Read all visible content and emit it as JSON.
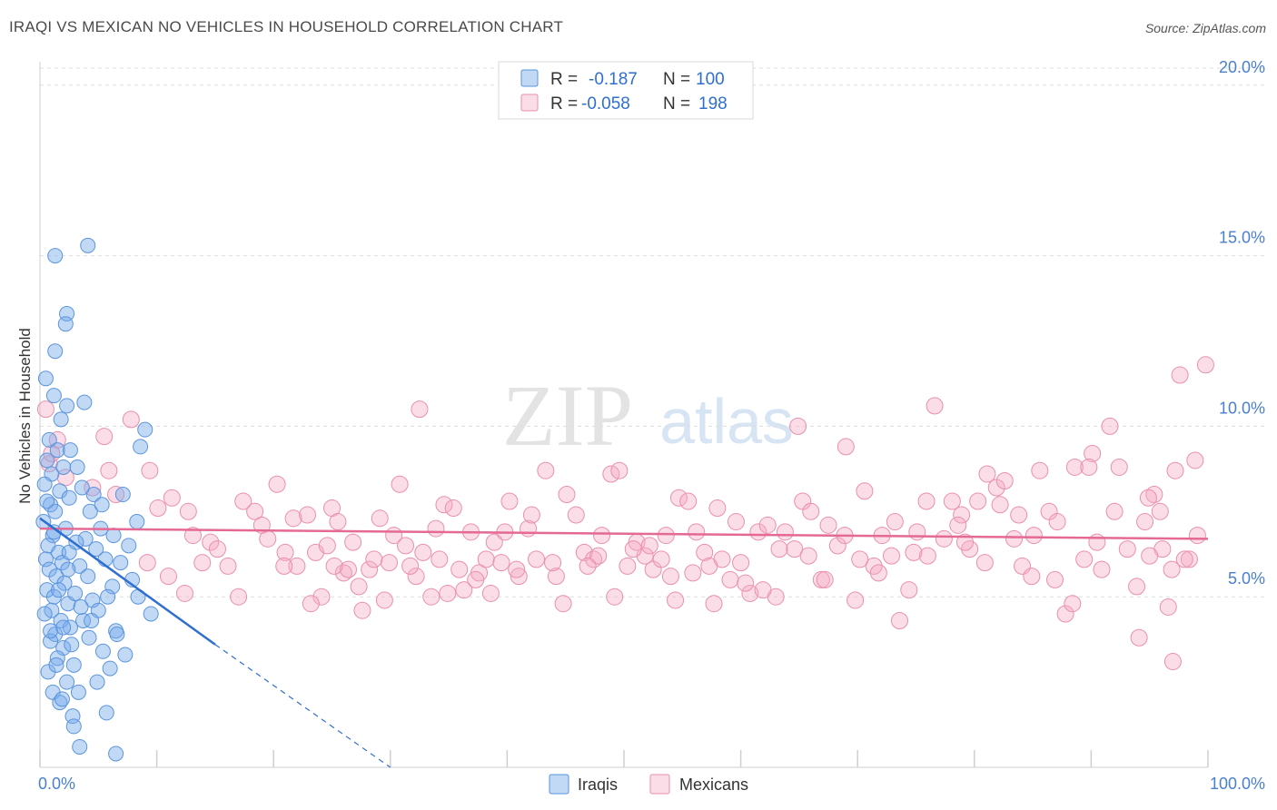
{
  "title": "IRAQI VS MEXICAN NO VEHICLES IN HOUSEHOLD CORRELATION CHART",
  "source": "Source: ZipAtlas.com",
  "colors": {
    "iraqi_fill": "rgba(120,170,235,0.45)",
    "iraqi_stroke": "#5b95dc",
    "iraqi_line": "#2f6fd0",
    "mexican_fill": "rgba(245,170,195,0.40)",
    "mexican_stroke": "#ea8fae",
    "mexican_line": "#e46a95",
    "tick_label": "#4a7fd0",
    "grid": "#dddddd"
  },
  "legend_top": {
    "rows": [
      {
        "r_label": "R =",
        "r_value": "-0.187",
        "n_label": "N =",
        "n_value": "100"
      },
      {
        "r_label": "R =",
        "r_value": "-0.058",
        "n_label": "N =",
        "n_value": "198"
      }
    ]
  },
  "legend_bottom": [
    "Iraqis",
    "Mexicans"
  ],
  "watermark": {
    "part1": "ZIP",
    "part2": "atlas"
  },
  "chart_data": {
    "type": "scatter",
    "title": "IRAQI VS MEXICAN NO VEHICLES IN HOUSEHOLD CORRELATION CHART",
    "xlabel": "",
    "ylabel": "No Vehicles in Household",
    "xlim": [
      0,
      100
    ],
    "ylim": [
      0,
      20.5
    ],
    "x_tick_labels": [
      {
        "value": 0,
        "label": "0.0%"
      },
      {
        "value": 100,
        "label": "100.0%"
      }
    ],
    "y_tick_labels": [
      {
        "value": 5,
        "label": "5.0%"
      },
      {
        "value": 10,
        "label": "10.0%"
      },
      {
        "value": 15,
        "label": "15.0%"
      },
      {
        "value": 20,
        "label": "20.0%"
      }
    ],
    "series": [
      {
        "name": "Iraqis",
        "r": -0.187,
        "n": 100,
        "trend": {
          "x0": 0,
          "y0": 7.3,
          "x1": 15,
          "y1": 3.6,
          "dash_to_x": 30
        },
        "points": [
          [
            0.5,
            11.4
          ],
          [
            1.2,
            10.9
          ],
          [
            2.3,
            10.6
          ],
          [
            1.8,
            10.2
          ],
          [
            0.8,
            9.6
          ],
          [
            1.5,
            9.3
          ],
          [
            0.6,
            9.0
          ],
          [
            2.0,
            8.8
          ],
          [
            1.0,
            8.6
          ],
          [
            0.4,
            8.3
          ],
          [
            1.7,
            8.1
          ],
          [
            2.5,
            7.9
          ],
          [
            0.9,
            7.7
          ],
          [
            1.3,
            7.5
          ],
          [
            0.3,
            7.2
          ],
          [
            2.2,
            7.0
          ],
          [
            1.1,
            6.8
          ],
          [
            0.7,
            6.5
          ],
          [
            1.6,
            6.3
          ],
          [
            0.5,
            6.1
          ],
          [
            1.9,
            6.0
          ],
          [
            0.8,
            5.8
          ],
          [
            1.4,
            5.6
          ],
          [
            2.1,
            5.4
          ],
          [
            0.6,
            5.2
          ],
          [
            1.2,
            5.0
          ],
          [
            2.4,
            4.8
          ],
          [
            1.0,
            4.6
          ],
          [
            0.4,
            4.5
          ],
          [
            1.8,
            4.3
          ],
          [
            2.6,
            4.1
          ],
          [
            1.3,
            3.9
          ],
          [
            0.9,
            3.7
          ],
          [
            2.0,
            3.5
          ],
          [
            1.5,
            3.2
          ],
          [
            0.7,
            2.8
          ],
          [
            2.3,
            2.5
          ],
          [
            1.1,
            2.2
          ],
          [
            1.7,
            1.9
          ],
          [
            2.8,
            1.5
          ],
          [
            1.3,
            15.0
          ],
          [
            4.1,
            15.3
          ],
          [
            2.3,
            13.3
          ],
          [
            2.2,
            13.0
          ],
          [
            1.3,
            12.2
          ],
          [
            3.8,
            10.7
          ],
          [
            4.6,
            8.0
          ],
          [
            2.6,
            9.3
          ],
          [
            3.2,
            8.8
          ],
          [
            3.6,
            8.2
          ],
          [
            4.3,
            7.5
          ],
          [
            5.2,
            7.0
          ],
          [
            3.9,
            6.7
          ],
          [
            4.8,
            6.4
          ],
          [
            5.6,
            6.1
          ],
          [
            3.4,
            5.9
          ],
          [
            4.1,
            5.6
          ],
          [
            6.2,
            5.3
          ],
          [
            3.0,
            5.1
          ],
          [
            4.5,
            4.9
          ],
          [
            5.0,
            4.6
          ],
          [
            3.7,
            4.3
          ],
          [
            6.5,
            4.0
          ],
          [
            4.2,
            3.8
          ],
          [
            5.4,
            3.4
          ],
          [
            2.9,
            3.0
          ],
          [
            6.0,
            2.9
          ],
          [
            4.9,
            2.5
          ],
          [
            3.3,
            2.2
          ],
          [
            5.7,
            1.6
          ],
          [
            8.6,
            9.4
          ],
          [
            9.0,
            9.9
          ],
          [
            7.1,
            8.0
          ],
          [
            8.3,
            7.2
          ],
          [
            7.6,
            6.5
          ],
          [
            6.9,
            6.0
          ],
          [
            7.9,
            5.5
          ],
          [
            8.4,
            5.0
          ],
          [
            9.5,
            4.5
          ],
          [
            6.6,
            3.9
          ],
          [
            2.5,
            6.3
          ],
          [
            3.1,
            6.6
          ],
          [
            1.6,
            5.2
          ],
          [
            0.9,
            4.0
          ],
          [
            2.7,
            3.6
          ],
          [
            1.9,
            2.0
          ],
          [
            3.5,
            4.7
          ],
          [
            2.4,
            5.8
          ],
          [
            1.2,
            6.9
          ],
          [
            0.6,
            7.8
          ],
          [
            3.4,
            0.6
          ],
          [
            6.5,
            0.4
          ],
          [
            2.9,
            1.2
          ],
          [
            5.8,
            5.0
          ],
          [
            4.4,
            4.3
          ],
          [
            7.3,
            3.3
          ],
          [
            6.3,
            6.8
          ],
          [
            5.3,
            7.7
          ],
          [
            2.0,
            4.1
          ],
          [
            1.4,
            3.0
          ]
        ]
      },
      {
        "name": "Mexicans",
        "r": -0.058,
        "n": 198,
        "trend": {
          "x0": 0,
          "y0": 7.0,
          "x1": 100,
          "y1": 6.7
        },
        "points": [
          [
            0.5,
            10.5
          ],
          [
            1.5,
            9.6
          ],
          [
            0.8,
            8.9
          ],
          [
            2.2,
            8.5
          ],
          [
            1.0,
            9.2
          ],
          [
            5.5,
            9.7
          ],
          [
            7.8,
            10.2
          ],
          [
            5.9,
            8.7
          ],
          [
            6.5,
            8.0
          ],
          [
            4.5,
            8.2
          ],
          [
            9.4,
            8.7
          ],
          [
            10.1,
            7.6
          ],
          [
            11.3,
            7.9
          ],
          [
            12.7,
            7.5
          ],
          [
            13.1,
            6.8
          ],
          [
            14.6,
            6.6
          ],
          [
            9.2,
            6.0
          ],
          [
            11.0,
            5.6
          ],
          [
            12.4,
            5.1
          ],
          [
            13.9,
            6.0
          ],
          [
            15.2,
            6.4
          ],
          [
            16.1,
            5.9
          ],
          [
            17.0,
            5.0
          ],
          [
            17.4,
            7.8
          ],
          [
            18.4,
            7.5
          ],
          [
            19.5,
            6.7
          ],
          [
            20.3,
            8.3
          ],
          [
            21.0,
            6.3
          ],
          [
            22.0,
            5.9
          ],
          [
            22.9,
            7.4
          ],
          [
            23.6,
            6.3
          ],
          [
            24.1,
            5.0
          ],
          [
            25.0,
            7.6
          ],
          [
            25.5,
            7.2
          ],
          [
            26.0,
            5.7
          ],
          [
            26.8,
            6.6
          ],
          [
            27.6,
            4.6
          ],
          [
            28.2,
            5.8
          ],
          [
            29.1,
            7.3
          ],
          [
            29.9,
            6.0
          ],
          [
            30.8,
            8.3
          ],
          [
            31.3,
            6.5
          ],
          [
            32.2,
            5.6
          ],
          [
            32.8,
            6.3
          ],
          [
            33.5,
            5.0
          ],
          [
            34.2,
            6.1
          ],
          [
            34.6,
            7.7
          ],
          [
            35.4,
            7.6
          ],
          [
            36.3,
            5.2
          ],
          [
            36.9,
            6.9
          ],
          [
            37.6,
            5.7
          ],
          [
            38.2,
            6.1
          ],
          [
            38.9,
            6.6
          ],
          [
            39.5,
            6.0
          ],
          [
            40.2,
            7.8
          ],
          [
            41.0,
            5.6
          ],
          [
            41.8,
            7.0
          ],
          [
            42.5,
            6.1
          ],
          [
            43.3,
            8.7
          ],
          [
            44.2,
            5.6
          ],
          [
            45.1,
            8.0
          ],
          [
            45.9,
            7.4
          ],
          [
            46.6,
            6.3
          ],
          [
            47.4,
            6.1
          ],
          [
            48.1,
            6.8
          ],
          [
            48.9,
            8.6
          ],
          [
            49.6,
            8.7
          ],
          [
            50.3,
            5.9
          ],
          [
            51.1,
            6.6
          ],
          [
            51.8,
            6.2
          ],
          [
            52.5,
            5.8
          ],
          [
            53.2,
            6.1
          ],
          [
            54.0,
            5.6
          ],
          [
            54.7,
            7.9
          ],
          [
            55.5,
            7.8
          ],
          [
            56.2,
            6.9
          ],
          [
            56.9,
            6.3
          ],
          [
            57.7,
            4.8
          ],
          [
            58.4,
            6.1
          ],
          [
            59.1,
            5.5
          ],
          [
            60.0,
            6.0
          ],
          [
            60.8,
            5.1
          ],
          [
            61.5,
            6.9
          ],
          [
            62.3,
            7.1
          ],
          [
            63.0,
            5.0
          ],
          [
            63.8,
            6.9
          ],
          [
            64.6,
            6.4
          ],
          [
            65.3,
            7.8
          ],
          [
            66.0,
            7.5
          ],
          [
            66.9,
            5.5
          ],
          [
            67.5,
            7.1
          ],
          [
            68.3,
            6.5
          ],
          [
            69.0,
            9.4
          ],
          [
            69.8,
            4.9
          ],
          [
            70.6,
            8.1
          ],
          [
            71.4,
            5.9
          ],
          [
            72.1,
            6.8
          ],
          [
            72.9,
            6.2
          ],
          [
            73.6,
            4.3
          ],
          [
            74.4,
            5.2
          ],
          [
            75.1,
            6.9
          ],
          [
            75.9,
            7.8
          ],
          [
            76.6,
            10.6
          ],
          [
            77.4,
            6.7
          ],
          [
            78.1,
            7.8
          ],
          [
            78.9,
            7.4
          ],
          [
            79.6,
            6.4
          ],
          [
            80.3,
            7.8
          ],
          [
            81.1,
            8.6
          ],
          [
            81.9,
            8.2
          ],
          [
            82.6,
            8.4
          ],
          [
            83.4,
            6.7
          ],
          [
            84.1,
            5.9
          ],
          [
            84.9,
            5.6
          ],
          [
            85.6,
            8.7
          ],
          [
            86.4,
            7.5
          ],
          [
            87.1,
            7.2
          ],
          [
            87.8,
            4.5
          ],
          [
            88.6,
            8.8
          ],
          [
            89.4,
            6.1
          ],
          [
            90.1,
            9.2
          ],
          [
            90.9,
            5.8
          ],
          [
            91.6,
            10.0
          ],
          [
            92.4,
            8.8
          ],
          [
            93.1,
            6.4
          ],
          [
            93.9,
            5.3
          ],
          [
            94.6,
            7.2
          ],
          [
            95.4,
            8.0
          ],
          [
            96.1,
            6.4
          ],
          [
            96.9,
            5.8
          ],
          [
            97.6,
            11.5
          ],
          [
            98.4,
            6.1
          ],
          [
            99.1,
            6.8
          ],
          [
            99.8,
            11.8
          ],
          [
            98.9,
            9.0
          ],
          [
            97.2,
            8.7
          ],
          [
            96.6,
            4.7
          ],
          [
            95.9,
            7.5
          ],
          [
            95.0,
            6.2
          ],
          [
            94.1,
            3.8
          ],
          [
            98.0,
            6.1
          ],
          [
            97.0,
            3.1
          ],
          [
            94.9,
            7.9
          ],
          [
            92.0,
            7.5
          ],
          [
            90.5,
            6.6
          ],
          [
            89.8,
            8.8
          ],
          [
            88.4,
            4.8
          ],
          [
            86.9,
            5.5
          ],
          [
            85.1,
            6.8
          ],
          [
            83.8,
            7.4
          ],
          [
            82.2,
            7.7
          ],
          [
            80.9,
            6.0
          ],
          [
            79.2,
            6.6
          ],
          [
            78.6,
            7.1
          ],
          [
            76.0,
            6.2
          ],
          [
            74.8,
            6.3
          ],
          [
            73.2,
            7.2
          ],
          [
            71.8,
            5.7
          ],
          [
            70.2,
            6.1
          ],
          [
            68.9,
            6.8
          ],
          [
            67.2,
            5.5
          ],
          [
            65.8,
            6.2
          ],
          [
            64.9,
            10.0
          ],
          [
            63.3,
            6.4
          ],
          [
            61.9,
            5.2
          ],
          [
            60.4,
            5.4
          ],
          [
            59.6,
            7.2
          ],
          [
            58.0,
            7.6
          ],
          [
            57.3,
            5.9
          ],
          [
            55.9,
            5.7
          ],
          [
            54.4,
            4.9
          ],
          [
            53.6,
            6.8
          ],
          [
            52.2,
            6.5
          ],
          [
            50.8,
            6.4
          ],
          [
            49.2,
            5.0
          ],
          [
            47.8,
            6.2
          ],
          [
            46.9,
            5.9
          ],
          [
            44.8,
            4.8
          ],
          [
            43.9,
            6.0
          ],
          [
            42.1,
            7.4
          ],
          [
            40.8,
            5.8
          ],
          [
            39.8,
            6.9
          ],
          [
            38.6,
            5.1
          ],
          [
            37.3,
            5.5
          ],
          [
            35.9,
            5.8
          ],
          [
            34.9,
            5.1
          ],
          [
            33.9,
            7.0
          ],
          [
            32.5,
            10.5
          ],
          [
            31.7,
            5.9
          ],
          [
            30.3,
            6.8
          ],
          [
            29.5,
            4.9
          ],
          [
            28.6,
            6.1
          ],
          [
            27.3,
            5.3
          ],
          [
            26.4,
            5.8
          ],
          [
            25.2,
            5.9
          ],
          [
            24.6,
            6.5
          ],
          [
            23.2,
            4.8
          ],
          [
            21.7,
            7.3
          ],
          [
            20.9,
            5.9
          ],
          [
            19.0,
            7.1
          ]
        ]
      }
    ]
  }
}
